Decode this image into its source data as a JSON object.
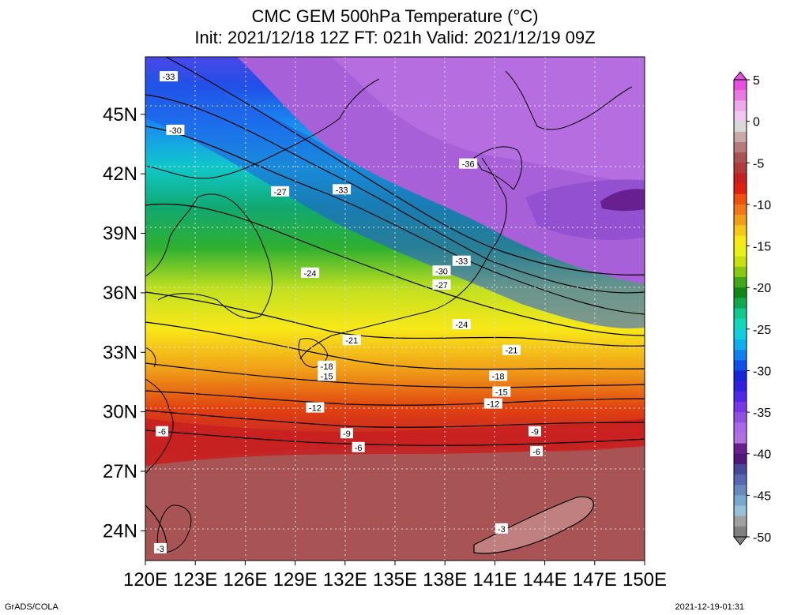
{
  "title": {
    "line1": "CMC GEM 500hPa Temperature (°C)",
    "line2": "Init: 2021/12/18 12Z  FT: 021h  Valid: 2021/12/19 09Z"
  },
  "axes": {
    "x_ticks": [
      "120E",
      "123E",
      "126E",
      "129E",
      "132E",
      "135E",
      "138E",
      "141E",
      "144E",
      "147E",
      "150E"
    ],
    "y_ticks": [
      "45N",
      "42N",
      "39N",
      "36N",
      "33N",
      "30N",
      "27N",
      "24N"
    ]
  },
  "colorbar": {
    "labels": [
      "5",
      "0",
      "-5",
      "-10",
      "-15",
      "-20",
      "-25",
      "-30",
      "-35",
      "-40",
      "-45",
      "-50"
    ],
    "colors": [
      "#e94fe0",
      "#ea7ae3",
      "#f0a8ec",
      "#f0c8ee",
      "#d8d8d8",
      "#c8a8a8",
      "#b87a7a",
      "#a85454",
      "#b23a3a",
      "#c82020",
      "#e02010",
      "#f05010",
      "#f07818",
      "#f0a018",
      "#f8c818",
      "#f8e818",
      "#e8f018",
      "#c8e010",
      "#88c810",
      "#40a818",
      "#108818",
      "#10a850",
      "#10c890",
      "#10d8b8",
      "#10d0e0",
      "#10b0f0",
      "#1080f0",
      "#1050e8",
      "#1828d8",
      "#3020e0",
      "#5028e8",
      "#7838e8",
      "#9050e0",
      "#a868e8",
      "#b070e0",
      "#682090",
      "#501878",
      "#484898",
      "#5868b0",
      "#6888c0",
      "#78a8d0",
      "#98c0d8",
      "#a0a0a0",
      "#808080"
    ]
  },
  "contour_labels": [
    {
      "text": "-33",
      "lon": 121.4,
      "lat": 46.9
    },
    {
      "text": "-30",
      "lon": 121.8,
      "lat": 44.2
    },
    {
      "text": "-36",
      "lon": 139.4,
      "lat": 42.5
    },
    {
      "text": "-27",
      "lon": 128.1,
      "lat": 41.1
    },
    {
      "text": "-33",
      "lon": 131.8,
      "lat": 41.2
    },
    {
      "text": "-24",
      "lon": 129.9,
      "lat": 37.0
    },
    {
      "text": "-30",
      "lon": 137.8,
      "lat": 37.1
    },
    {
      "text": "-33",
      "lon": 139.0,
      "lat": 37.6
    },
    {
      "text": "-27",
      "lon": 137.8,
      "lat": 36.4
    },
    {
      "text": "-24",
      "lon": 139.0,
      "lat": 34.4
    },
    {
      "text": "-21",
      "lon": 132.4,
      "lat": 33.6
    },
    {
      "text": "-21",
      "lon": 142.0,
      "lat": 33.1
    },
    {
      "text": "-18",
      "lon": 130.9,
      "lat": 32.3
    },
    {
      "text": "-15",
      "lon": 130.9,
      "lat": 31.8
    },
    {
      "text": "-18",
      "lon": 141.2,
      "lat": 31.8
    },
    {
      "text": "-15",
      "lon": 141.4,
      "lat": 31.0
    },
    {
      "text": "-12",
      "lon": 130.2,
      "lat": 30.2
    },
    {
      "text": "-12",
      "lon": 140.9,
      "lat": 30.4
    },
    {
      "text": "-9",
      "lon": 132.1,
      "lat": 28.9
    },
    {
      "text": "-9",
      "lon": 143.4,
      "lat": 29.0
    },
    {
      "text": "-6",
      "lon": 121.0,
      "lat": 29.0
    },
    {
      "text": "-6",
      "lon": 132.8,
      "lat": 28.2
    },
    {
      "text": "-6",
      "lon": 143.5,
      "lat": 28.0
    },
    {
      "text": "-3",
      "lon": 141.4,
      "lat": 24.1
    },
    {
      "text": "-3",
      "lon": 120.9,
      "lat": 23.1
    }
  ],
  "footer": {
    "left": "GrADS/COLA",
    "right": "2021-12-19-01:31"
  }
}
